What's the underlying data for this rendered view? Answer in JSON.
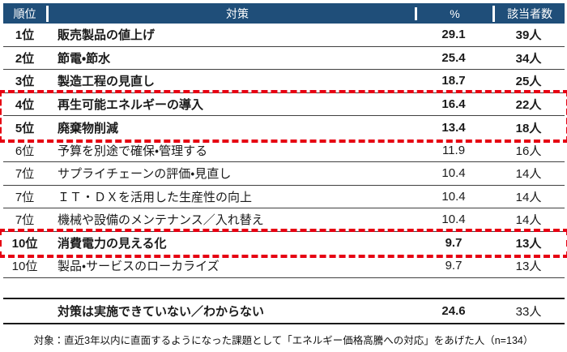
{
  "chart_data": {
    "type": "table",
    "title": "",
    "columns": {
      "rank": "順位",
      "measure": "対策",
      "percent": "%",
      "count": "該当者数"
    },
    "rows": [
      {
        "rank": "1位",
        "measure": "販売製品の値上げ",
        "percent": "29.1",
        "count": "39人",
        "emphasis": true,
        "highlighted": false
      },
      {
        "rank": "2位",
        "measure": "節電・節水",
        "percent": "25.4",
        "count": "34人",
        "emphasis": true,
        "highlighted": false
      },
      {
        "rank": "3位",
        "measure": "製造工程の見直し",
        "percent": "18.7",
        "count": "25人",
        "emphasis": true,
        "highlighted": false
      },
      {
        "rank": "4位",
        "measure": "再生可能エネルギーの導入",
        "percent": "16.4",
        "count": "22人",
        "emphasis": true,
        "highlighted": true
      },
      {
        "rank": "5位",
        "measure": "廃棄物削減",
        "percent": "13.4",
        "count": "18人",
        "emphasis": true,
        "highlighted": true
      },
      {
        "rank": "6位",
        "measure": "予算を別途で確保・管理する",
        "percent": "11.9",
        "count": "16人",
        "emphasis": false,
        "highlighted": false
      },
      {
        "rank": "7位",
        "measure": "サプライチェーンの評価・見直し",
        "percent": "10.4",
        "count": "14人",
        "emphasis": false,
        "highlighted": false
      },
      {
        "rank": "7位",
        "measure": "ＩＴ・ＤＸを活用した生産性の向上",
        "percent": "10.4",
        "count": "14人",
        "emphasis": false,
        "highlighted": false
      },
      {
        "rank": "7位",
        "measure": "機械や設備のメンテナンス／入れ替え",
        "percent": "10.4",
        "count": "14人",
        "emphasis": false,
        "highlighted": false
      },
      {
        "rank": "10位",
        "measure": "消費電力の見える化",
        "percent": "9.7",
        "count": "13人",
        "emphasis": true,
        "highlighted": true
      },
      {
        "rank": "10位",
        "measure": "製品・サービスのローカライズ",
        "percent": "9.7",
        "count": "13人",
        "emphasis": false,
        "highlighted": false
      }
    ],
    "summary_row": {
      "rank": "",
      "measure": "対策は実施できていない／わからない",
      "percent": "24.6",
      "count": "33人"
    },
    "note": "対象：直近3年以内に直面するようになった課題として「エネルギー価格高騰への対応」をあげた人（n=134）"
  },
  "colors": {
    "header_bg": "#1F4E79",
    "header_text": "#FFFFFF",
    "row_border": "#404040",
    "highlight_border": "#E60012",
    "body_text": "#1A1A1A"
  }
}
